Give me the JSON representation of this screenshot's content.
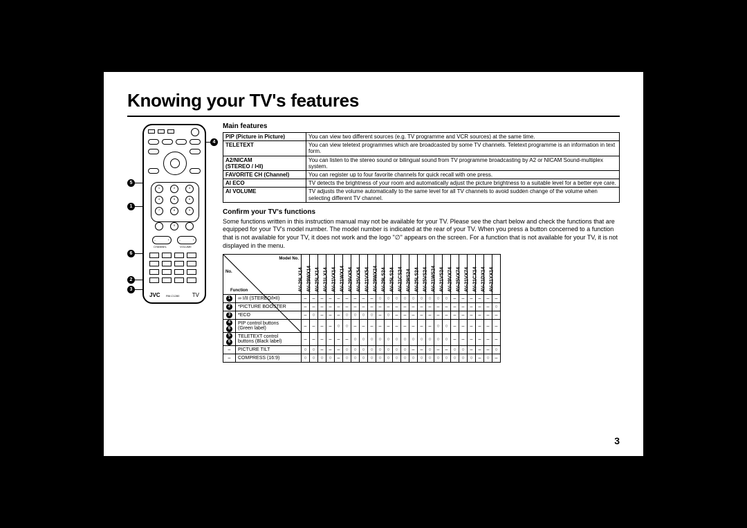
{
  "title": "Knowing your TV's features",
  "page_number": "3",
  "main_features_heading": "Main features",
  "main_features": [
    {
      "name": "PIP (Picture in Picture)",
      "desc": "You can view two different sources (e.g. TV programme and VCR sources) at the same time."
    },
    {
      "name": "TELETEXT",
      "desc": "You can view teletext programmes which are broadcasted by some TV channels. Teletext programme is an information in text form."
    },
    {
      "name": "A2/NICAM\n(STEREO / I•II)",
      "desc": "You can listen to the stereo sound or bilingual sound from TV programme broadcasting by A2 or NICAM Sound-multiplex system."
    },
    {
      "name": "FAVORITE CH (Channel)",
      "desc": "You can register up to four favorite channels for quick recall with one press."
    },
    {
      "name": "AI ECO",
      "desc": "TV detects the brightness of your room and automatically adjust the picture brightness to a suitable level for a better eye care."
    },
    {
      "name": "AI VOLUME",
      "desc": "TV adjusts the volume automatically to the same level for all TV channels to avoid sudden change of the volume when selecting different TV channel."
    }
  ],
  "confirm_heading": "Confirm your TV's functions",
  "confirm_para": "Some functions written in this instruction manual may not be available for your TV.\nPlease see the chart below and check the functions that are equipped for your TV's model number. The model number is indicated at the rear of your TV. When you press a button concerned to a function that is not available for your TV, it does not work and the logo \"∅\" appears on the screen. For a function that is not available for your TV, it is not displayed in the menu.",
  "matrix": {
    "corner_labels": {
      "model": "Model No.",
      "no": "No.",
      "func": "Function"
    },
    "models": [
      "AV-29LX14",
      "AV-29WX14",
      "AV-25LX14",
      "AV-21LX14",
      "AV-21VX14",
      "AV-21WX14",
      "AV-29VX54",
      "AV-25VX54",
      "AV-21VX54",
      "AV-29WX24",
      "AV-29LS24",
      "AV-25LS24",
      "AV-21CS24",
      "AV-29IS24",
      "AV-25LS24",
      "AV-25VS24",
      "AV-21WS24",
      "AV-21VS24",
      "AV-29VX74",
      "AV-25VX74",
      "AV-21VX74",
      "AV-21CX14",
      "AV-21DX14",
      "AV-21YX14"
    ],
    "rows": [
      {
        "refs": "1",
        "name": "∞ I/II (STEREO/I•II)",
        "cells": [
          "–",
          "–",
          "–",
          "–",
          "–",
          "–",
          "–",
          "–",
          "–",
          "○",
          "○",
          "○",
          "○",
          "○",
          "○",
          "○",
          "○",
          "○",
          "–",
          "–",
          "–",
          "–",
          "–",
          "–"
        ]
      },
      {
        "refs": "2",
        "name": "*PICTURE BOOSTER",
        "cells": [
          "–",
          "–",
          "–",
          "–",
          "–",
          "–",
          "–",
          "–",
          "–",
          "–",
          "–",
          "–",
          "–",
          "–",
          "–",
          "–",
          "–",
          "–",
          "–",
          "–",
          "–",
          "–",
          "–",
          "○"
        ]
      },
      {
        "refs": "3",
        "name": "*ECO",
        "cells": [
          "–",
          "○",
          "–",
          "–",
          "–",
          "○",
          "○",
          "○",
          "○",
          "–",
          "○",
          "–",
          "–",
          "–",
          "–",
          "–",
          "–",
          "–",
          "–",
          "–",
          "–",
          "–",
          "–",
          "–"
        ]
      },
      {
        "refs": "4 6",
        "name": "PIP control buttons\n(Green label)",
        "cells": [
          "–",
          "–",
          "–",
          "–",
          "○",
          "○",
          "–",
          "–",
          "–",
          "–",
          "–",
          "–",
          "–",
          "–",
          "–",
          "–",
          "○",
          "○",
          "–",
          "–",
          "–",
          "–",
          "–",
          "–"
        ]
      },
      {
        "refs": "5 6",
        "name": "TELETEXT control\nbuttons (Black label)",
        "cells": [
          "–",
          "–",
          "–",
          "–",
          "–",
          "–",
          "○",
          "○",
          "○",
          "○",
          "○",
          "○",
          "○",
          "○",
          "○",
          "○",
          "○",
          "○",
          "–",
          "–",
          "–",
          "–",
          "–",
          "–"
        ]
      },
      {
        "refs": "–",
        "name": "PICTURE TILT",
        "cells": [
          "○",
          "○",
          "–",
          "–",
          "–",
          "○",
          "○",
          "○",
          "○",
          "○",
          "○",
          "○",
          "○",
          "–",
          "–",
          "○",
          "–",
          "–",
          "○",
          "○",
          "–",
          "–",
          "–",
          "○"
        ]
      },
      {
        "refs": "–",
        "name": "COMPRESS (16:9)",
        "cells": [
          "○",
          "○",
          "○",
          "○",
          "–",
          "○",
          "○",
          "○",
          "○",
          "○",
          "○",
          "○",
          "○",
          "○",
          "○",
          "○",
          "○",
          "○",
          "○",
          "○",
          "○",
          "–",
          "○",
          "–"
        ]
      }
    ]
  },
  "remote": {
    "label_tv": "TV",
    "label_brand": "JVC",
    "model": "RM-C1280"
  },
  "callouts": [
    "1",
    "2",
    "3",
    "4",
    "5",
    "6"
  ]
}
